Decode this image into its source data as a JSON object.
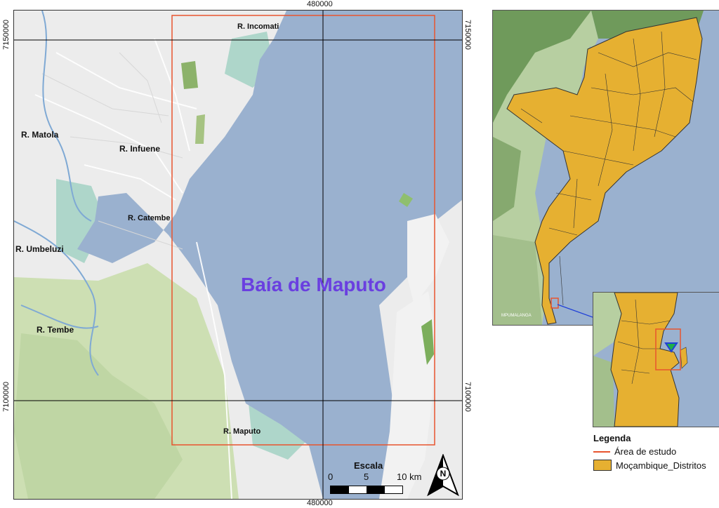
{
  "grid": {
    "easting": "480000",
    "northing_top": "7150000",
    "northing_bottom": "7100000"
  },
  "places": {
    "incomati": "R. Incomati",
    "matola": "R. Matola",
    "infuene": "R. Infuene",
    "catembe": "R. Catembe",
    "umbeluzi": "R. Umbeluzi",
    "tembe": "R. Tembe",
    "maputo_river": "R. Maputo",
    "bay": "Baía de Maputo",
    "mpumalanga": "MPUMALANGA"
  },
  "legend": {
    "title": "Legenda",
    "study_area": "Área de estudo",
    "districts": "Moçambique_Distritos"
  },
  "scale": {
    "title": "Escala",
    "zero": "0",
    "five": "5",
    "ten": "10 km"
  },
  "north_arrow": {
    "letter": "N"
  },
  "colors": {
    "water": "#9ab1cf",
    "land": "#ececec",
    "forest": "#cfe0b6",
    "districts": "#e6b031",
    "study_area": "#e8542e",
    "bay_label": "#6a3fe0",
    "locator_line": "#1f3fd8"
  }
}
